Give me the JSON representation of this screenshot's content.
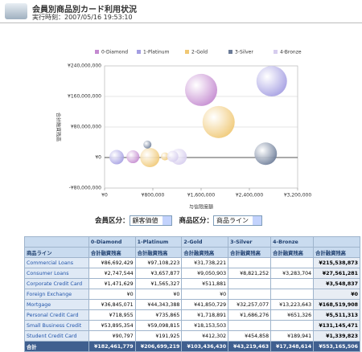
{
  "header": {
    "title": "会員別商品別カード利用状況",
    "timestamp": "実行時刻：2007/05/16 19:53:10"
  },
  "chart_data": {
    "type": "bubble",
    "x_label": "与信限度額",
    "y_label": "合計融資残高",
    "xlim": [
      0,
      3200000
    ],
    "xticks": [
      {
        "value": 0,
        "label": "¥0"
      },
      {
        "value": 800000,
        "label": "¥800,000"
      },
      {
        "value": 1600000,
        "label": "¥1,600,000"
      },
      {
        "value": 2400000,
        "label": "¥2,400,000"
      },
      {
        "value": 3200000,
        "label": "¥3,200,000"
      }
    ],
    "ylim": [
      -80000000,
      240000000
    ],
    "yticks": [
      {
        "value": -80000000,
        "label": "-¥80,000,000"
      },
      {
        "value": 0,
        "label": "¥0"
      },
      {
        "value": 80000000,
        "label": "¥80,000,000"
      },
      {
        "value": 160000000,
        "label": "¥160,000,000"
      },
      {
        "value": 240000000,
        "label": "¥240,000,000"
      }
    ],
    "grid": true,
    "legend": "top",
    "series": [
      {
        "name": "0-Diamond",
        "color": "#c48ad0",
        "x": [
          1600000,
          470000
        ],
        "values": [
          177000000,
          2000000
        ],
        "sizes": [
          20,
          8
        ]
      },
      {
        "name": "1-Platinum",
        "color": "#a49ee2",
        "x": [
          2770000,
          200000
        ],
        "values": [
          200000000,
          1000000
        ],
        "sizes": [
          19,
          9
        ]
      },
      {
        "name": "2-Gold",
        "color": "#f0c874",
        "x": [
          1890000,
          750000,
          1000000
        ],
        "values": [
          93000000,
          0,
          3000000
        ],
        "sizes": [
          20,
          12,
          5
        ]
      },
      {
        "name": "3-Silver",
        "color": "#6c7c98",
        "x": [
          2670000,
          710000
        ],
        "values": [
          10000000,
          34000000
        ],
        "sizes": [
          14,
          5
        ]
      },
      {
        "name": "4-Bronze",
        "color": "#d6cdee",
        "x": [
          1230000,
          1130000
        ],
        "values": [
          2000000,
          3000000
        ],
        "sizes": [
          10,
          7
        ]
      }
    ]
  },
  "controls": {
    "member_label": "会員区分：",
    "member_value": "顧客価値",
    "product_label": "商品区分：",
    "product_value": "商品ライン"
  },
  "table": {
    "groups": [
      "0-Diamond",
      "1-Platinum",
      "2-Gold",
      "3-Silver",
      "4-Bronze"
    ],
    "subheader": [
      "商品ライン",
      "合計融資残高",
      "合計融資残高",
      "合計融資残高",
      "合計融資残高",
      "合計融資残高",
      "合計融資残高"
    ],
    "rows": [
      {
        "label": "Commercial Loans",
        "cells": [
          "¥86,692,429",
          "¥97,108,223",
          "¥31,738,221",
          null,
          null,
          "¥215,538,873"
        ]
      },
      {
        "label": "Consumer Loans",
        "cells": [
          "¥2,747,544",
          "¥3,657,877",
          "¥9,050,903",
          "¥8,821,252",
          "¥3,283,704",
          "¥27,561,281"
        ]
      },
      {
        "label": "Corporate Credit Card",
        "cells": [
          "¥1,471,629",
          "¥1,565,327",
          "¥511,881",
          null,
          null,
          "¥3,548,837"
        ]
      },
      {
        "label": "Foreign Exchange",
        "cells": [
          "¥0",
          "¥0",
          "¥0",
          null,
          null,
          "¥0"
        ]
      },
      {
        "label": "Mortgage",
        "cells": [
          "¥36,845,071",
          "¥44,343,388",
          "¥41,850,729",
          "¥32,257,077",
          "¥13,223,643",
          "¥168,519,908"
        ]
      },
      {
        "label": "Personal Credit Card",
        "cells": [
          "¥718,955",
          "¥735,865",
          "¥1,718,891",
          "¥1,686,276",
          "¥651,326",
          "¥5,511,313"
        ]
      },
      {
        "label": "Small Business Credit",
        "cells": [
          "¥53,895,354",
          "¥59,098,815",
          "¥18,153,503",
          null,
          null,
          "¥131,145,471"
        ]
      },
      {
        "label": "Student Credit Card",
        "cells": [
          "¥90,797",
          "¥191,925",
          "¥412,302",
          "¥454,858",
          "¥189,941",
          "¥1,339,823"
        ]
      },
      {
        "label": "合計",
        "cells": [
          "¥182,461,779",
          "¥206,699,219",
          "¥103,436,430",
          "¥43,219,463",
          "¥17,348,614",
          "¥553,165,506"
        ]
      }
    ]
  }
}
